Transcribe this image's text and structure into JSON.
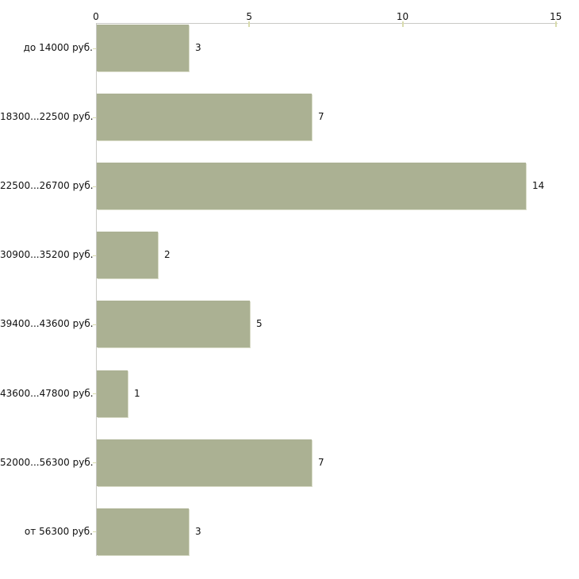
{
  "chart_data": {
    "type": "bar",
    "orientation": "horizontal",
    "title": "",
    "categories": [
      "до 14000 руб.",
      "18300...22500 руб.",
      "22500...26700 руб.",
      "30900...35200 руб.",
      "39400...43600 руб.",
      "43600...47800 руб.",
      "52000...56300 руб.",
      "от 56300 руб."
    ],
    "values": [
      3,
      7,
      14,
      2,
      5,
      1,
      7,
      3
    ],
    "value_labels": [
      "3",
      "7",
      "14",
      "2",
      "5",
      "1",
      "7",
      "3"
    ],
    "x_ticks": [
      0,
      5,
      10,
      15
    ],
    "x_tick_labels": [
      "0",
      "5",
      "10",
      "15"
    ],
    "xlim": [
      0,
      15
    ],
    "grid": false,
    "legend": false,
    "axis_position": "top",
    "value_labels_shown": true,
    "colors": {
      "bar": "#abb193",
      "bar_edge_highlight": "#d9dcc8",
      "axis_line": "#c9c9c5",
      "tick_mark": "#d9dcae",
      "text": "#111111",
      "background": "#ffffff"
    }
  }
}
